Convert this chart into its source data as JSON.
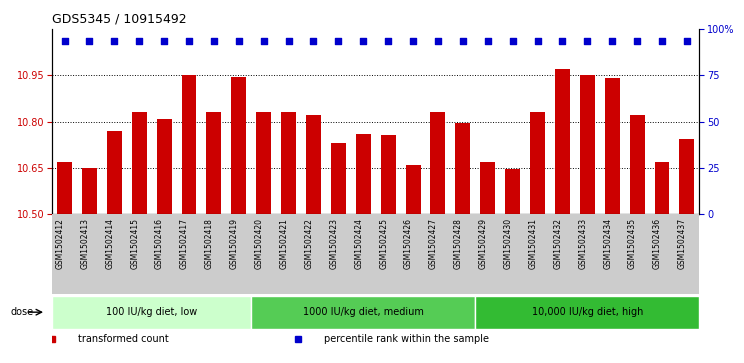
{
  "title": "GDS5345 / 10915492",
  "categories": [
    "GSM1502412",
    "GSM1502413",
    "GSM1502414",
    "GSM1502415",
    "GSM1502416",
    "GSM1502417",
    "GSM1502418",
    "GSM1502419",
    "GSM1502420",
    "GSM1502421",
    "GSM1502422",
    "GSM1502423",
    "GSM1502424",
    "GSM1502425",
    "GSM1502426",
    "GSM1502427",
    "GSM1502428",
    "GSM1502429",
    "GSM1502430",
    "GSM1502431",
    "GSM1502432",
    "GSM1502433",
    "GSM1502434",
    "GSM1502435",
    "GSM1502436",
    "GSM1502437"
  ],
  "bar_values": [
    10.67,
    10.65,
    10.77,
    10.83,
    10.81,
    10.95,
    10.83,
    10.945,
    10.83,
    10.83,
    10.82,
    10.73,
    10.76,
    10.755,
    10.66,
    10.83,
    10.795,
    10.67,
    10.645,
    10.83,
    10.97,
    10.95,
    10.94,
    10.82,
    10.67,
    10.745
  ],
  "percentile_values": [
    96,
    96,
    96,
    96,
    96,
    96,
    96,
    96,
    96,
    96,
    96,
    96,
    96,
    96,
    96,
    96,
    93,
    96,
    96,
    96,
    96,
    96,
    96,
    96,
    96,
    96
  ],
  "bar_color": "#cc0000",
  "percentile_color": "#0000cc",
  "ylim_left": [
    10.5,
    11.1
  ],
  "ylim_right": [
    0,
    100
  ],
  "yticks_left": [
    10.5,
    10.65,
    10.8,
    10.95
  ],
  "yticks_right": [
    0,
    25,
    50,
    75,
    100
  ],
  "ytick_labels_right": [
    "0",
    "25",
    "50",
    "75",
    "100%"
  ],
  "groups": [
    {
      "label": "100 IU/kg diet, low",
      "start": 0,
      "end": 8,
      "color": "#ccffcc"
    },
    {
      "label": "1000 IU/kg diet, medium",
      "start": 8,
      "end": 17,
      "color": "#55cc55"
    },
    {
      "label": "10,000 IU/kg diet, high",
      "start": 17,
      "end": 26,
      "color": "#33bb33"
    }
  ],
  "dose_label": "dose",
  "legend_items": [
    {
      "label": "transformed count",
      "color": "#cc0000"
    },
    {
      "label": "percentile rank within the sample",
      "color": "#0000cc"
    }
  ],
  "grid_color": "#000000",
  "xticklabel_bg": "#cccccc",
  "plot_bg_color": "#ffffff"
}
